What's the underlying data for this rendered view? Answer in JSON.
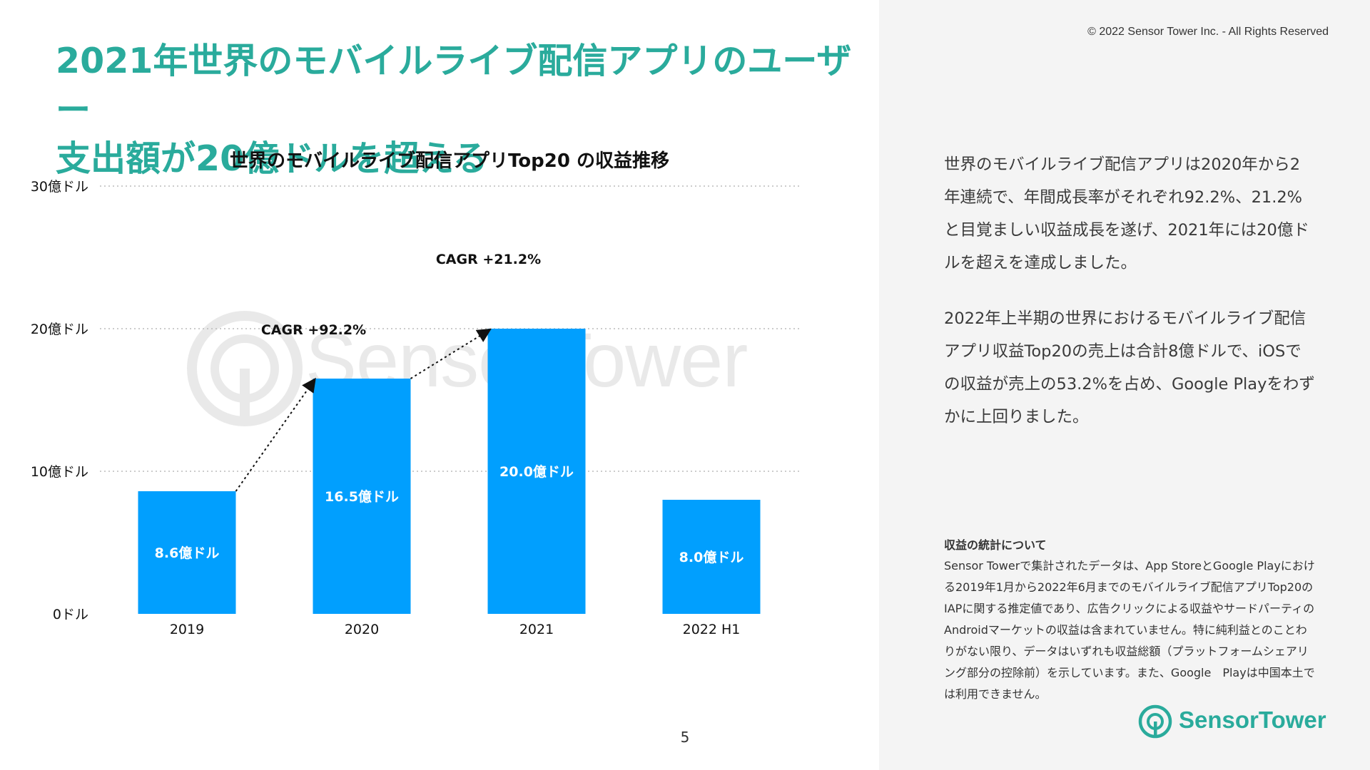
{
  "title": {
    "line1": "2021年世界のモバイルライブ配信アプリのユーザー",
    "line2": "支出額が20億ドルを超える"
  },
  "copyright": "© 2022 Sensor Tower Inc. - All Rights Reserved",
  "page_number": "5",
  "watermark_text": "SensorTower",
  "summary": {
    "paragraph1": "世界のモバイルライブ配信アプリは2020年から2年連続で、年間成長率がそれぞれ92.2%、21.2%と目覚ましい収益成長を遂げ、2021年には20億ドルを超えを達成しました。",
    "paragraph2": "2022年上半期の世界におけるモバイルライブ配信アプリ収益Top20の売上は合計8億ドルで、iOSでの収益が売上の53.2%を占め、Google Playをわずかに上回りました。"
  },
  "note": {
    "title": "収益の統計について",
    "body": "Sensor Towerで集計されたデータは、App StoreとGoogle Playにおける2019年1月から2022年6月までのモバイルライブ配信アプリTop20のIAPに関する推定値であり、広告クリックによる収益やサードパーティのAndroidマーケットの収益は含まれていません。特に純利益とのことわりがない限り、データはいずれも収益総額（プラットフォームシェアリング部分の控除前）を示しています。また、Google　Playは中国本土では利用できません。"
  },
  "logo_text": "SensorTower",
  "colors": {
    "title": "#2aab9c",
    "bar": "#019ffe",
    "grid": "#bbbbbb",
    "right_panel": "#f4f4f4"
  },
  "chart_data": {
    "type": "bar",
    "title": "世界のモバイルライブ配信アプリTop20 の収益推移",
    "categories": [
      "2019",
      "2020",
      "2021",
      "2022 H1"
    ],
    "values": [
      8.6,
      16.5,
      20.0,
      8.0
    ],
    "data_labels": [
      "8.6億ドル",
      "16.5億ドル",
      "20.0億ドル",
      "8.0億ドル"
    ],
    "unit": "億ドル",
    "ylim": [
      0,
      30
    ],
    "yticks": [
      0,
      10,
      20,
      30
    ],
    "ytick_labels": [
      "0ドル",
      "10億ドル",
      "20億ドル",
      "30億ドル"
    ],
    "xlabel": "",
    "ylabel": "",
    "grid": true,
    "grid_style": "dotted",
    "legend": "none",
    "annotations": [
      {
        "text": "CAGR +92.2%",
        "from_category": "2019",
        "to_category": "2020"
      },
      {
        "text": "CAGR +21.2%",
        "from_category": "2020",
        "to_category": "2021"
      }
    ]
  }
}
